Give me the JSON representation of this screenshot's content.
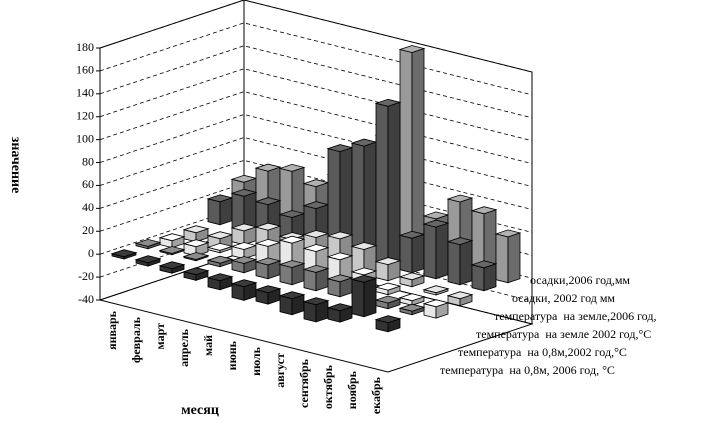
{
  "chart_data": {
    "type": "bar3d",
    "x_label": "месяц",
    "y_label": "значение",
    "categories": [
      "январь",
      "февраль",
      "март",
      "апрель",
      "май",
      "июнь",
      "июль",
      "август",
      "сентябрь",
      "октябрь",
      "ноябрь",
      "екабрь"
    ],
    "series": [
      {
        "name": "осадки,2006 год,мм",
        "color": "#9a9a9a",
        "values": [
          30,
          45,
          50,
          42,
          55,
          60,
          100,
          180,
          40,
          60,
          55,
          40
        ]
      },
      {
        "name": "осадки, 2002 год мм",
        "color": "#5a5a5a",
        "values": [
          20,
          30,
          28,
          22,
          35,
          90,
          100,
          140,
          30,
          45,
          35,
          20
        ]
      },
      {
        "name": "температура  на земле,2006 год,",
        "color": "#c8c8c8",
        "values": [
          -8,
          -10,
          12,
          18,
          15,
          22,
          26,
          22,
          14,
          6,
          -2,
          -6
        ]
      },
      {
        "name": "температура  на земле 2002 год,°C",
        "color": "#e8e8e8",
        "values": [
          -6,
          -8,
          2,
          8,
          16,
          24,
          22,
          20,
          12,
          4,
          -4,
          -10
        ]
      },
      {
        "name": "температура  на 0,8м,2002 год,°C",
        "color": "#7a7a7a",
        "values": [
          2,
          1,
          1,
          3,
          8,
          12,
          15,
          16,
          13,
          8,
          5,
          3
        ]
      },
      {
        "name": "температура  на 0,8м, 2006 год, °C",
        "color": "#333333",
        "values": [
          -2,
          -3,
          -4,
          -5,
          -8,
          -12,
          -10,
          -14,
          -15,
          -10,
          30,
          -8
        ]
      }
    ],
    "ylim": [
      -40,
      180
    ],
    "yticks": [
      -40,
      -20,
      0,
      20,
      40,
      60,
      80,
      100,
      120,
      140,
      160,
      180
    ],
    "grid": true
  }
}
